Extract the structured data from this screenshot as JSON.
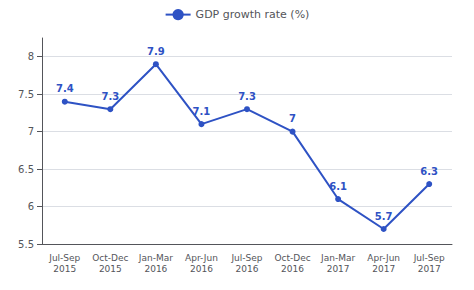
{
  "chart_data": {
    "type": "line",
    "categories": [
      "Jul-Sep\n2015",
      "Oct-Dec\n2015",
      "Jan-Mar\n2016",
      "Apr-Jun\n2016",
      "Jul-Sep\n2016",
      "Oct-Dec\n2016",
      "Jan-Mar\n2017",
      "Apr-Jun\n2017",
      "Jul-Sep\n2017"
    ],
    "series": [
      {
        "name": "GDP growth rate (%)",
        "color": "#2e52c4",
        "values": [
          7.4,
          7.3,
          7.9,
          7.1,
          7.3,
          7.0,
          6.1,
          5.7,
          6.3
        ]
      }
    ],
    "ylim": [
      5.5,
      8.25
    ],
    "yticks": [
      5.5,
      6,
      6.5,
      7,
      7.5,
      8
    ],
    "grid": true,
    "legend": "top",
    "data_labels": true,
    "marker": "circle"
  }
}
